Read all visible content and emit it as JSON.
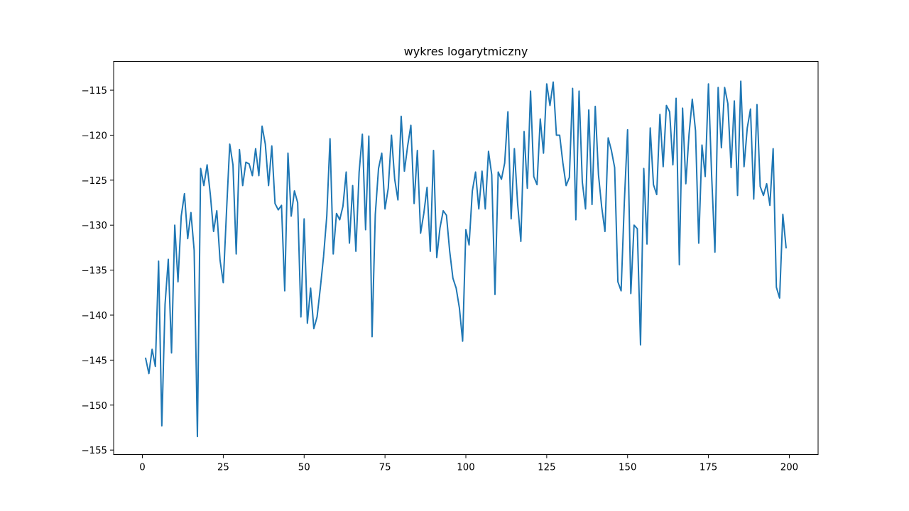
{
  "chart_data": {
    "type": "line",
    "title": "wykres logarytmiczny",
    "xlabel": "",
    "ylabel": "",
    "xlim": [
      -8.9,
      208.9
    ],
    "ylim": [
      -155.5,
      -111.8
    ],
    "x_ticks": [
      0,
      25,
      50,
      75,
      100,
      125,
      150,
      175,
      200
    ],
    "x_tick_labels": [
      "0",
      "25",
      "50",
      "75",
      "100",
      "125",
      "150",
      "175",
      "200"
    ],
    "y_ticks": [
      -155,
      -150,
      -145,
      -140,
      -135,
      -130,
      -125,
      -120,
      -115
    ],
    "y_tick_labels": [
      "−155",
      "−150",
      "−145",
      "−140",
      "−135",
      "−130",
      "−125",
      "−120",
      "−115"
    ],
    "grid": false,
    "legend": "none",
    "series": [
      {
        "color": "#1f77b4",
        "x_start": 1,
        "x_step": 1,
        "values": [
          -144.8,
          -146.5,
          -143.8,
          -145.7,
          -134.0,
          -152.3,
          -138.8,
          -133.8,
          -144.2,
          -130.0,
          -136.3,
          -129.0,
          -126.5,
          -131.5,
          -128.6,
          -132.8,
          -153.5,
          -123.7,
          -125.6,
          -123.3,
          -126.6,
          -130.7,
          -128.4,
          -133.9,
          -136.4,
          -128.5,
          -121.0,
          -123.3,
          -133.2,
          -121.6,
          -125.6,
          -123.0,
          -123.2,
          -124.5,
          -121.5,
          -124.5,
          -119.0,
          -121.0,
          -125.6,
          -121.2,
          -127.6,
          -128.3,
          -127.8,
          -137.3,
          -122.0,
          -129.0,
          -126.2,
          -127.5,
          -140.2,
          -129.3,
          -140.9,
          -137.0,
          -141.5,
          -140.2,
          -137.0,
          -133.5,
          -129.0,
          -120.4,
          -133.2,
          -128.7,
          -129.4,
          -127.9,
          -124.1,
          -132.0,
          -125.6,
          -132.9,
          -124.1,
          -119.9,
          -130.5,
          -120.1,
          -142.4,
          -128.8,
          -123.7,
          -122.0,
          -128.2,
          -125.9,
          -120.0,
          -124.9,
          -127.2,
          -117.9,
          -124.0,
          -121.2,
          -118.9,
          -127.6,
          -121.7,
          -130.9,
          -128.7,
          -125.8,
          -132.9,
          -121.7,
          -133.6,
          -130.3,
          -128.4,
          -128.9,
          -132.9,
          -135.9,
          -137.0,
          -139.2,
          -142.9,
          -130.5,
          -132.2,
          -126.2,
          -124.1,
          -128.2,
          -124.0,
          -128.2,
          -121.8,
          -124.4,
          -137.7,
          -124.1,
          -124.9,
          -123.1,
          -117.4,
          -129.3,
          -121.5,
          -127.6,
          -131.8,
          -119.6,
          -125.9,
          -115.1,
          -124.6,
          -125.5,
          -118.2,
          -122.0,
          -114.3,
          -116.7,
          -114.1,
          -120.0,
          -120.0,
          -123.1,
          -125.6,
          -124.7,
          -114.8,
          -129.4,
          -115.1,
          -125.2,
          -128.2,
          -117.2,
          -127.7,
          -116.8,
          -124.4,
          -128.0,
          -130.7,
          -120.3,
          -121.7,
          -123.6,
          -136.3,
          -137.3,
          -127.4,
          -119.4,
          -137.6,
          -130.0,
          -130.4,
          -143.3,
          -123.7,
          -132.1,
          -119.2,
          -125.5,
          -126.6,
          -117.7,
          -123.5,
          -116.7,
          -117.4,
          -123.3,
          -115.9,
          -134.4,
          -117.0,
          -125.4,
          -119.9,
          -116.0,
          -119.5,
          -132.0,
          -121.1,
          -124.6,
          -114.3,
          -124.6,
          -133.0,
          -114.7,
          -121.4,
          -114.7,
          -116.5,
          -123.6,
          -116.2,
          -126.7,
          -114.0,
          -123.5,
          -119.2,
          -117.1,
          -127.1,
          -116.6,
          -125.7,
          -126.7,
          -125.4,
          -127.8,
          -121.5,
          -136.9,
          -138.1,
          -128.8,
          -132.5
        ]
      }
    ]
  }
}
